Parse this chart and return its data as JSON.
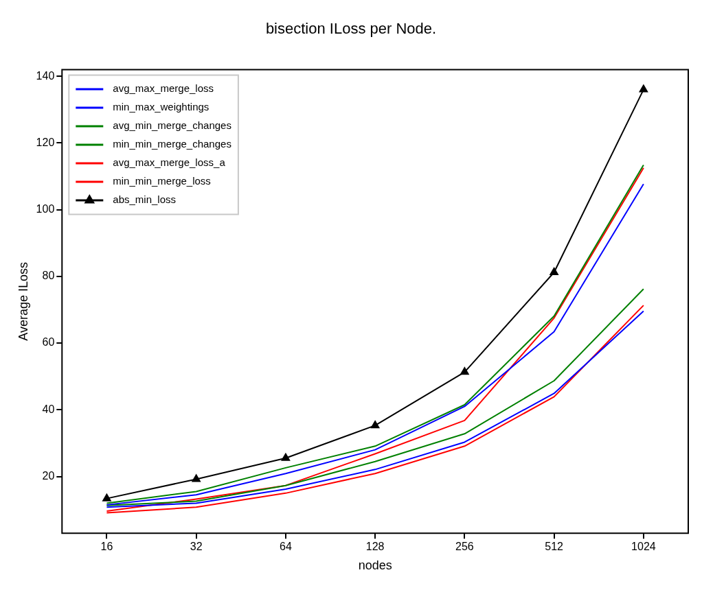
{
  "chart_data": {
    "type": "line",
    "title": "bisection ILoss per Node.",
    "xlabel": "nodes",
    "ylabel": "Average ILoss",
    "categories": [
      "16",
      "32",
      "64",
      "128",
      "256",
      "512",
      "1024"
    ],
    "ylim": [
      3,
      142
    ],
    "yticks": [
      20,
      40,
      60,
      80,
      100,
      120,
      140
    ],
    "grid": false,
    "legend": "top left",
    "series": [
      {
        "name": "avg_max_merge_loss",
        "color": "#0000ff",
        "marker": "none",
        "values": [
          11.5,
          14.5,
          20.9,
          28,
          41,
          63.4,
          107.7
        ]
      },
      {
        "name": "min_max_weightings",
        "color": "#0000ff",
        "marker": "none",
        "values": [
          10.8,
          12,
          16.2,
          22.1,
          30.3,
          44.9,
          69.6
        ]
      },
      {
        "name": "avg_min_merge_changes",
        "color": "#008000",
        "marker": "none",
        "values": [
          12,
          15.5,
          22.6,
          29.1,
          41.5,
          68.1,
          113.4
        ]
      },
      {
        "name": "min_min_merge_changes",
        "color": "#008000",
        "marker": "none",
        "values": [
          11.3,
          12.6,
          17.3,
          24.5,
          32.8,
          48.7,
          76.2
        ]
      },
      {
        "name": "avg_max_merge_loss_a",
        "color": "#ff0000",
        "marker": "none",
        "values": [
          9.6,
          13.2,
          17.3,
          26.8,
          36.8,
          67.5,
          112.5
        ]
      },
      {
        "name": "min_min_merge_loss",
        "color": "#ff0000",
        "marker": "none",
        "values": [
          9.1,
          10.8,
          15,
          20.9,
          29.1,
          43.9,
          71.3
        ]
      },
      {
        "name": "abs_min_loss",
        "color": "#000000",
        "marker": "triangle",
        "values": [
          13.4,
          19.2,
          25.5,
          35.3,
          51.3,
          81.2,
          136
        ]
      }
    ]
  }
}
